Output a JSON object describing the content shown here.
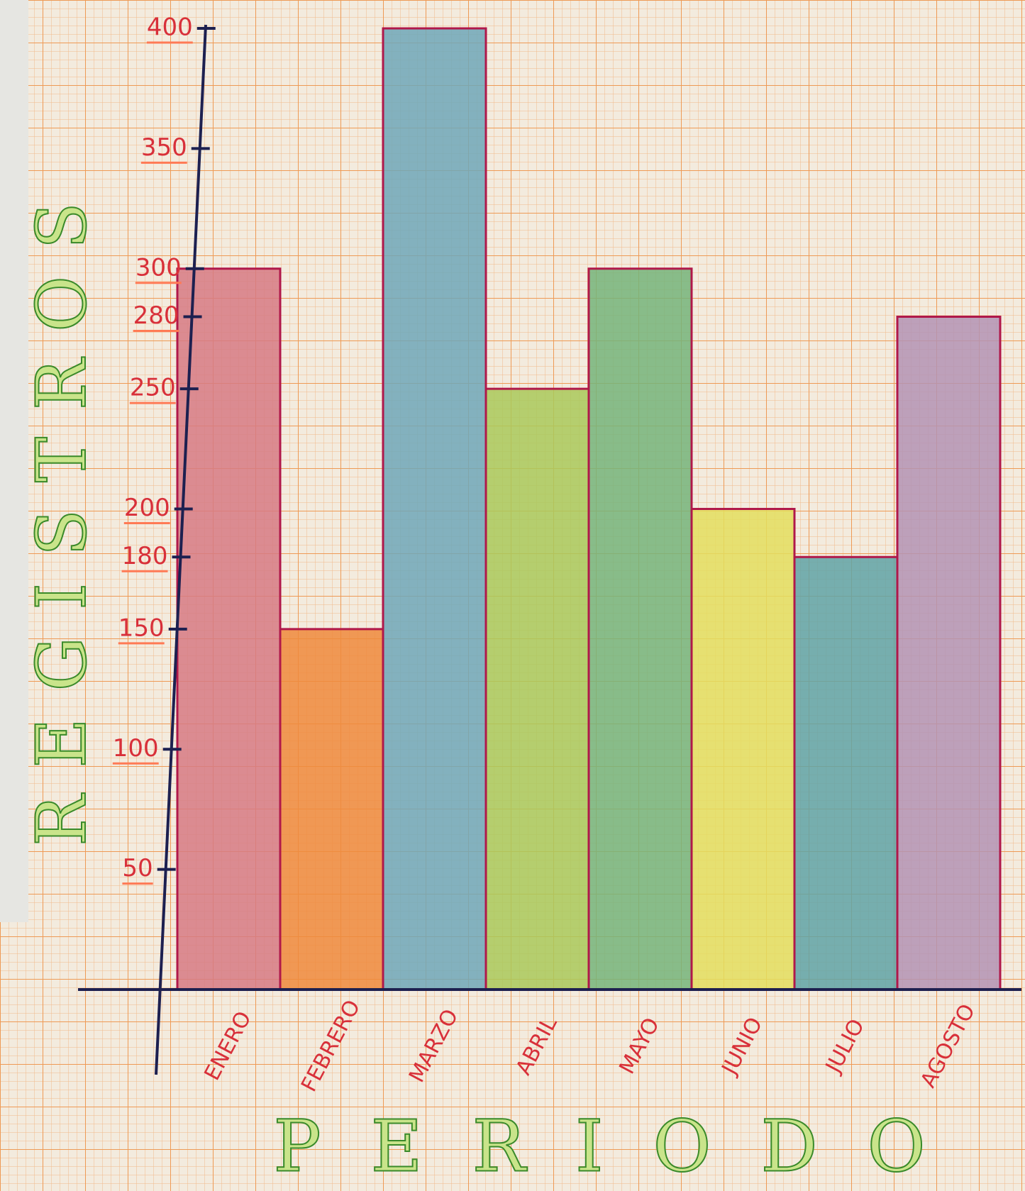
{
  "chart_data": {
    "type": "bar",
    "y_label": "REGISTROS",
    "x_label": "PERIODO",
    "categories": [
      "ENERO",
      "FEBRERO",
      "MARZO",
      "ABRIL",
      "MAYO",
      "JUNIO",
      "JULIO",
      "AGOSTO"
    ],
    "values": [
      300,
      150,
      400,
      250,
      300,
      200,
      180,
      280
    ],
    "colors": [
      "#d67a84",
      "#ef8a3c",
      "#6fa7b8",
      "#a9c95a",
      "#74b47a",
      "#e3de5e",
      "#5fa3a6",
      "#b393b4"
    ],
    "ylim": [
      0,
      400
    ],
    "yticks": [
      50,
      100,
      150,
      180,
      200,
      250,
      280,
      300,
      350,
      400
    ]
  }
}
